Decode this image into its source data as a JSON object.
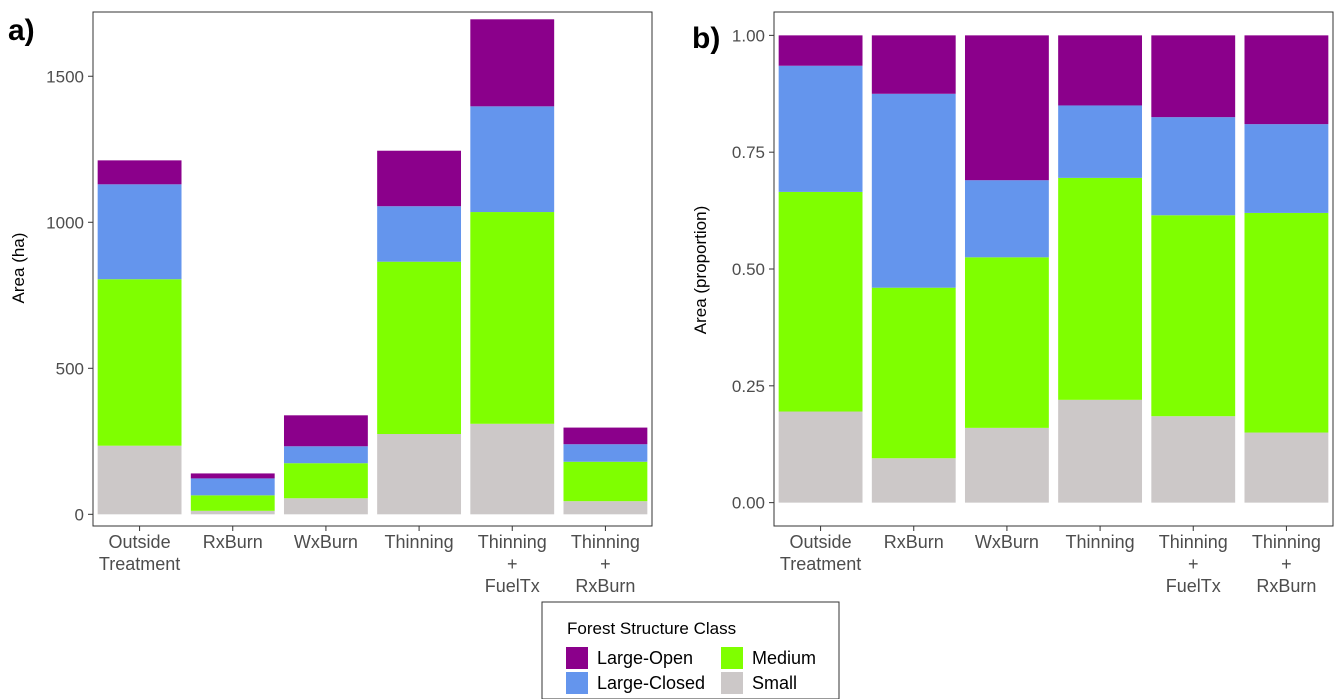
{
  "legend": {
    "title": "Forest Structure Class",
    "items": [
      {
        "name": "Large-Open",
        "color": "#8b008b"
      },
      {
        "name": "Large-Closed",
        "color": "#6495ed"
      },
      {
        "name": "Medium",
        "color": "#7fff00"
      },
      {
        "name": "Small",
        "color": "#ccc8c8"
      }
    ]
  },
  "chart_data": [
    {
      "panel": "a)",
      "type": "bar",
      "stacked": true,
      "ylabel": "Area (ha)",
      "xlabel": "",
      "ylim": [
        -40,
        1720
      ],
      "yticks": [
        0,
        500,
        1000,
        1500
      ],
      "ytick_labels": [
        "0",
        "500",
        "1000",
        "1500"
      ],
      "categories": [
        "Outside\nTreatment",
        "RxBurn",
        "WxBurn",
        "Thinning",
        "Thinning\n+\nFuelTx",
        "Thinning\n+\nRxBurn"
      ],
      "series": [
        {
          "name": "Small",
          "color": "#ccc8c8",
          "values": [
            235,
            12,
            55,
            275,
            310,
            45
          ]
        },
        {
          "name": "Medium",
          "color": "#7fff00",
          "values": [
            570,
            53,
            120,
            590,
            725,
            135
          ]
        },
        {
          "name": "Large-Closed",
          "color": "#6495ed",
          "values": [
            325,
            58,
            58,
            190,
            362,
            60
          ]
        },
        {
          "name": "Large-Open",
          "color": "#8b008b",
          "values": [
            82,
            17,
            106,
            190,
            298,
            57
          ]
        }
      ]
    },
    {
      "panel": "b)",
      "type": "bar",
      "stacked": true,
      "ylabel": "Area (proportion)",
      "xlabel": "",
      "ylim": [
        -0.05,
        1.05
      ],
      "yticks": [
        0,
        0.25,
        0.5,
        0.75,
        1.0
      ],
      "ytick_labels": [
        "0.00",
        "0.25",
        "0.50",
        "0.75",
        "1.00"
      ],
      "categories": [
        "Outside\nTreatment",
        "RxBurn",
        "WxBurn",
        "Thinning",
        "Thinning\n+\nFuelTx",
        "Thinning\n+\nRxBurn"
      ],
      "series": [
        {
          "name": "Small",
          "color": "#ccc8c8",
          "values": [
            0.195,
            0.095,
            0.16,
            0.22,
            0.185,
            0.15
          ]
        },
        {
          "name": "Medium",
          "color": "#7fff00",
          "values": [
            0.47,
            0.365,
            0.365,
            0.475,
            0.43,
            0.47
          ]
        },
        {
          "name": "Large-Closed",
          "color": "#6495ed",
          "values": [
            0.27,
            0.415,
            0.165,
            0.155,
            0.21,
            0.19
          ]
        },
        {
          "name": "Large-Open",
          "color": "#8b008b",
          "values": [
            0.065,
            0.125,
            0.31,
            0.15,
            0.175,
            0.19
          ]
        }
      ]
    }
  ]
}
